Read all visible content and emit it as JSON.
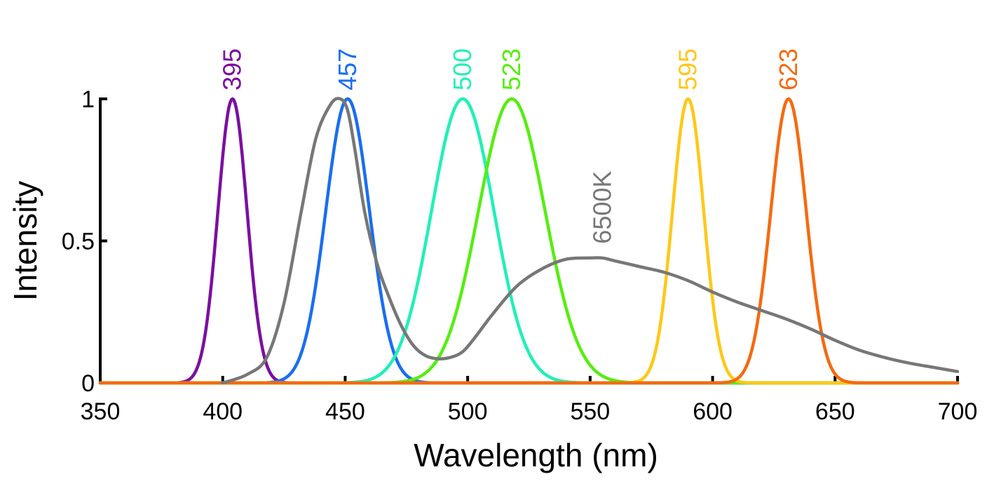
{
  "chart_data": {
    "type": "line",
    "title": "",
    "xlabel": "Wavelength (nm)",
    "ylabel": "Intensity",
    "xlim": [
      350,
      700
    ],
    "ylim": [
      0,
      1
    ],
    "x_ticks": [
      350,
      400,
      450,
      500,
      550,
      600,
      650,
      700
    ],
    "y_ticks": [
      0,
      0.5,
      1
    ],
    "y_tick_labels": [
      "0",
      "0.5",
      "1"
    ],
    "grid": false,
    "legend": "none",
    "series": [
      {
        "name": "395",
        "color": "#7b0fa0",
        "peak": 404,
        "fwhm": 14,
        "shape": "gauss",
        "label_x": 404,
        "label_y": 1.0
      },
      {
        "name": "457",
        "color": "#1a6ef0",
        "peak": 451,
        "fwhm": 21,
        "shape": "gauss",
        "label_x": 451,
        "label_y": 1.0
      },
      {
        "name": "500",
        "color": "#20f0b8",
        "peak": 498,
        "fwhm": 30,
        "shape": "gauss",
        "label_x": 498,
        "label_y": 1.0
      },
      {
        "name": "523",
        "color": "#55ee10",
        "peak": 518,
        "fwhm": 32,
        "shape": "gauss",
        "label_x": 518,
        "label_y": 1.0
      },
      {
        "name": "595",
        "color": "#ffc818",
        "peak": 590,
        "fwhm": 15,
        "shape": "gauss",
        "label_x": 590,
        "label_y": 1.0
      },
      {
        "name": "623",
        "color": "#f56a10",
        "peak": 631,
        "fwhm": 17,
        "shape": "gauss",
        "label_x": 631,
        "label_y": 1.0
      },
      {
        "name": "6500K",
        "color": "#777777",
        "shape": "points",
        "label_x": 555,
        "label_y": 0.46,
        "x": [
          400,
          410,
          418,
          425,
          432,
          438,
          444,
          448,
          451,
          454,
          458,
          463,
          468,
          473,
          478,
          483,
          488,
          493,
          498,
          503,
          510,
          520,
          530,
          540,
          550,
          555,
          560,
          570,
          580,
          590,
          600,
          610,
          620,
          630,
          640,
          650,
          660,
          670,
          680,
          690,
          700
        ],
        "y": [
          0.0,
          0.03,
          0.09,
          0.28,
          0.6,
          0.86,
          0.98,
          1.0,
          0.96,
          0.82,
          0.6,
          0.42,
          0.3,
          0.2,
          0.13,
          0.095,
          0.085,
          0.09,
          0.11,
          0.16,
          0.24,
          0.34,
          0.4,
          0.435,
          0.44,
          0.44,
          0.43,
          0.41,
          0.39,
          0.36,
          0.32,
          0.285,
          0.255,
          0.225,
          0.19,
          0.15,
          0.115,
          0.09,
          0.07,
          0.055,
          0.04
        ]
      }
    ]
  }
}
